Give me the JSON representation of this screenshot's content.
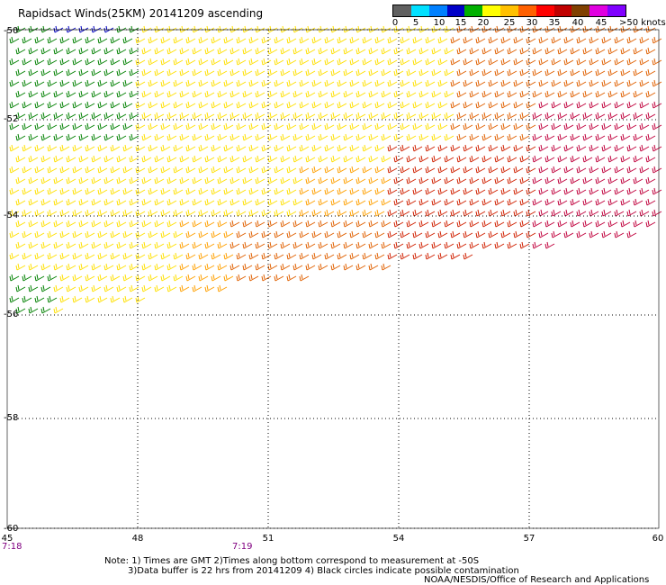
{
  "title": "Rapidsact Winds(25KM) 20141209 ascending",
  "legend": {
    "colors": [
      "#606060",
      "#00e0ff",
      "#0080ff",
      "#0000c8",
      "#00b000",
      "#ffff00",
      "#ffc000",
      "#ff6000",
      "#ff0000",
      "#c00000",
      "#804000",
      "#e000e0",
      "#8000ff"
    ],
    "labels": [
      "0",
      "5",
      "10",
      "15",
      "20",
      "25",
      "30",
      "35",
      "40",
      "45",
      ">50 knots"
    ]
  },
  "axes": {
    "x_ticks": [
      "45",
      "48",
      "51",
      "54",
      "57",
      "60"
    ],
    "y_ticks": [
      "-50",
      "-52",
      "-54",
      "-56",
      "-58",
      "-60"
    ]
  },
  "times": [
    "7:18",
    "7:19"
  ],
  "notes": [
    "Note: 1) Times are GMT 2)Times along bottom correspond to measurement at -50S",
    "3)Data buffer is 22 hrs from 20141209 4) Black circles indicate possible contamination"
  ],
  "credit": "NOAA/NESDIS/Office of Research and Applications",
  "wind_colors": {
    "green": "#008000",
    "blue": "#0000c0",
    "yellow": "#ffe000",
    "orange": "#ffa000",
    "darkorange": "#e06000",
    "red": "#d02000",
    "crimson": "#c0003c"
  }
}
